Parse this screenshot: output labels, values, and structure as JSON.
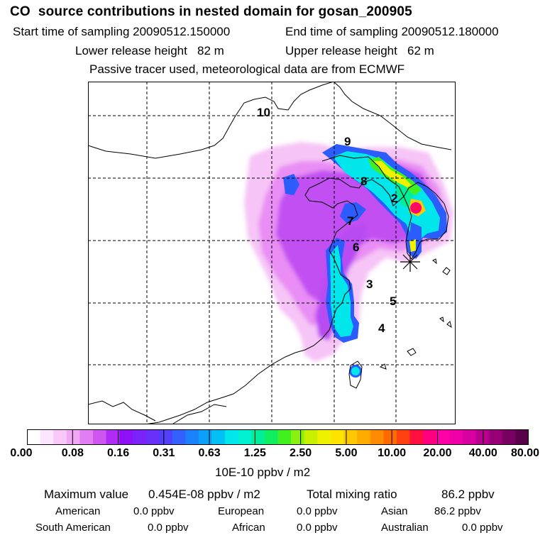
{
  "header": {
    "title": "CO  source contributions in nested domain for gosan_200905",
    "start_label": "Start time of sampling 20090512.150000",
    "end_label": "End time of sampling 20090512.180000",
    "lower_label": "Lower release height   82 m",
    "upper_label": "Upper release height   62 m",
    "info": "Passive tracer used, meteorological data are from ECMWF"
  },
  "map": {
    "trajectory_labels": [
      "10",
      "9",
      "8",
      "2",
      "7",
      "6",
      "3",
      "5",
      "4"
    ],
    "receptor_symbol": "✳"
  },
  "colorbar": {
    "colors": [
      "#ffffff",
      "#fde6fd",
      "#f8c8f8",
      "#f0a8f4",
      "#e27ef2",
      "#cf55f0",
      "#b02cf4",
      "#9010f6",
      "#7a22f8",
      "#6a30fa",
      "#5040fc",
      "#3460fc",
      "#1c82fc",
      "#0ca0f8",
      "#00c0f4",
      "#00e6ea",
      "#00f0d0",
      "#00ee9a",
      "#10ee60",
      "#40f020",
      "#8af010",
      "#c8f000",
      "#eef200",
      "#ffe400",
      "#ffc800",
      "#ffac00",
      "#ff8c00",
      "#ff6a00",
      "#ff4010",
      "#ff1040",
      "#ff007e",
      "#ff00a8",
      "#f000a8",
      "#d800a0",
      "#b80090",
      "#980078",
      "#780060",
      "#580048"
    ],
    "ticks": [
      "0.00",
      "0.08",
      "0.16",
      "0.31",
      "0.63",
      "1.25",
      "2.50",
      "5.00",
      "10.00",
      "20.00",
      "40.00",
      "80.00"
    ],
    "units": "10E-10 ppbv / m2"
  },
  "summary": {
    "max_label": "Maximum value",
    "max_value": "0.454E-08 ppbv / m2",
    "total_label": "Total mixing ratio",
    "total_value": "86.2 ppbv",
    "regions": [
      {
        "name": "American",
        "value": "0.0 ppbv"
      },
      {
        "name": "European",
        "value": "0.0 ppbv"
      },
      {
        "name": "Asian",
        "value": "86.2 ppbv"
      },
      {
        "name": "South American",
        "value": "0.0 ppbv"
      },
      {
        "name": "African",
        "value": "0.0 ppbv"
      },
      {
        "name": "Australian",
        "value": "0.0 ppbv"
      }
    ]
  }
}
